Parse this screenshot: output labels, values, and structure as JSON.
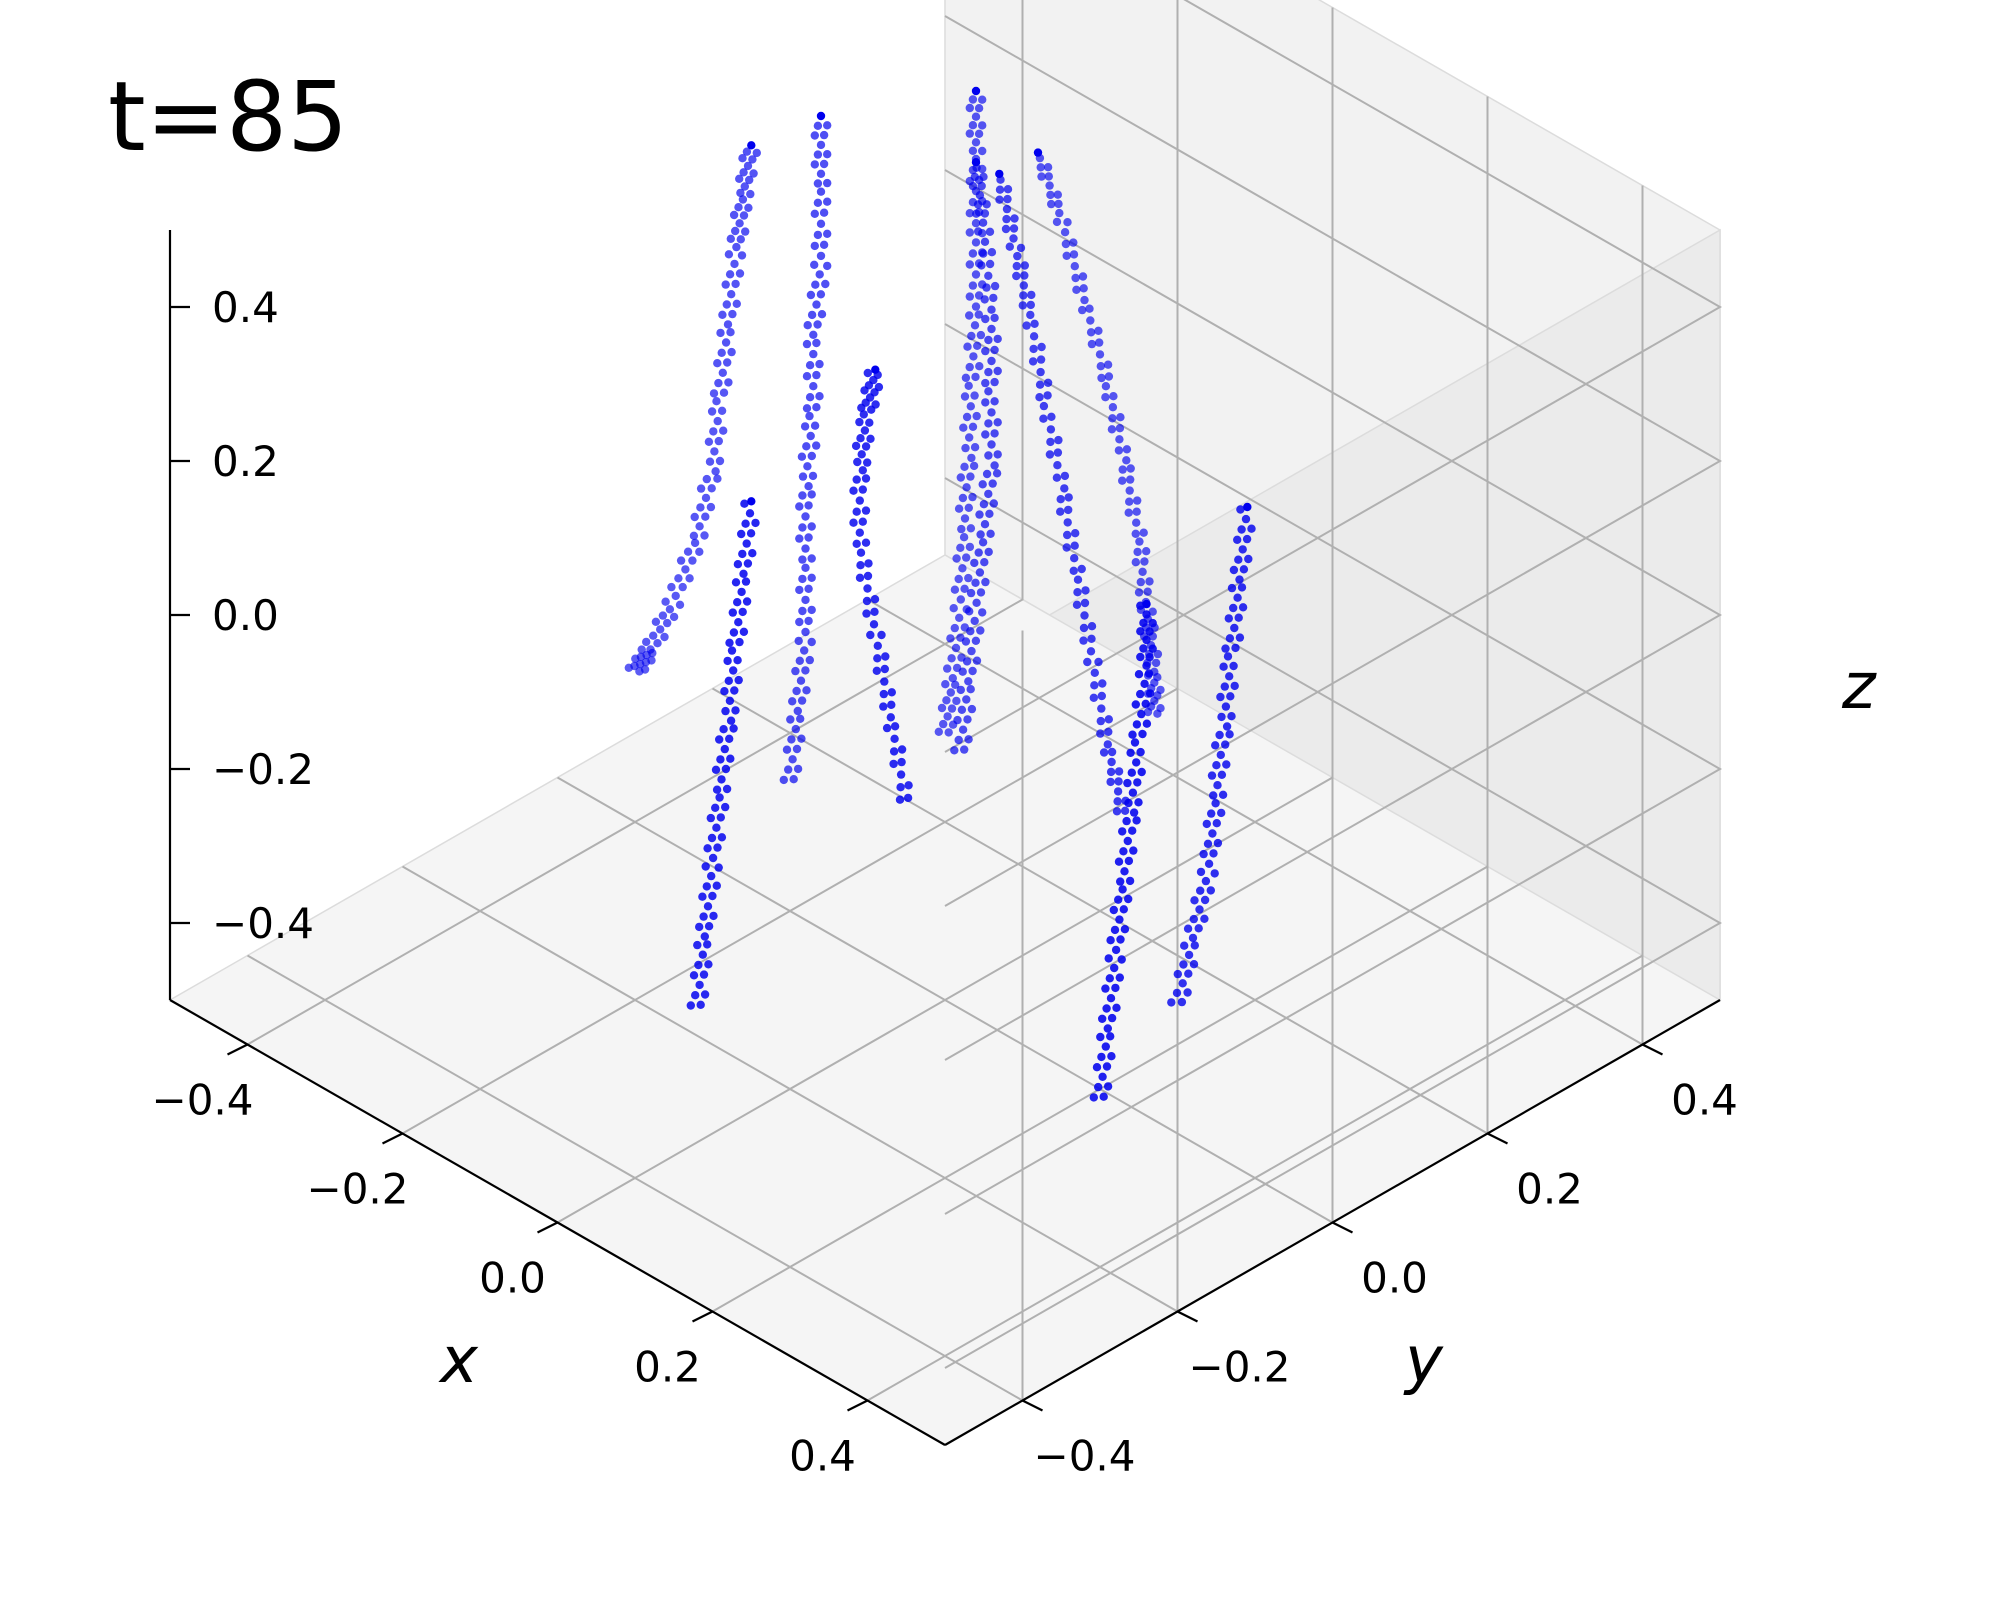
{
  "time_label": "t=85",
  "chart_data": {
    "type": "scatter",
    "projection": "3d",
    "title": "",
    "xlabel": "x",
    "ylabel": "y",
    "zlabel": "z",
    "xlim": [
      -0.5,
      0.5
    ],
    "ylim": [
      -0.5,
      0.5
    ],
    "zlim": [
      -0.5,
      0.5
    ],
    "xticks": [
      -0.4,
      -0.2,
      0.0,
      0.2,
      0.4
    ],
    "yticks": [
      -0.4,
      -0.2,
      0.0,
      0.2,
      0.4
    ],
    "zticks": [
      -0.4,
      -0.2,
      0.0,
      0.2,
      0.4
    ],
    "xtick_labels": [
      "−0.4",
      "−0.2",
      "0.0",
      "0.2",
      "0.4"
    ],
    "ytick_labels": [
      "−0.4",
      "−0.2",
      "0.0",
      "0.2",
      "0.4"
    ],
    "ztick_labels": [
      "−0.4",
      "−0.2",
      "0.0",
      "0.2",
      "0.4"
    ],
    "grid": true,
    "marker_color": "#0000ee",
    "pane_colors": {
      "left": "#f2f2f2",
      "right": "#ebebeb",
      "floor": "#f5f5f5"
    },
    "series": [
      {
        "points": [
          [
            -0.5,
            0.1,
            -0.42
          ],
          [
            -0.48,
            0.1,
            -0.38
          ],
          [
            -0.45,
            0.1,
            -0.3
          ],
          [
            -0.42,
            0.1,
            -0.2
          ],
          [
            -0.4,
            0.1,
            -0.1
          ],
          [
            -0.39,
            0.1,
            0.0
          ],
          [
            -0.38,
            0.1,
            0.1
          ],
          [
            -0.37,
            0.1,
            0.2
          ],
          [
            -0.36,
            0.1,
            0.28
          ],
          [
            -0.35,
            0.1,
            0.35
          ]
        ]
      },
      {
        "points": [
          [
            -0.28,
            0.28,
            -0.48
          ],
          [
            -0.27,
            0.28,
            -0.4
          ],
          [
            -0.26,
            0.28,
            -0.3
          ],
          [
            -0.255,
            0.28,
            -0.2
          ],
          [
            -0.25,
            0.28,
            -0.1
          ],
          [
            -0.245,
            0.28,
            0.0
          ],
          [
            -0.24,
            0.28,
            0.1
          ],
          [
            -0.24,
            0.28,
            0.2
          ],
          [
            -0.24,
            0.28,
            0.3
          ],
          [
            -0.24,
            0.28,
            0.38
          ]
        ]
      },
      {
        "points": [
          [
            -0.3,
            0.1,
            -0.45
          ],
          [
            -0.29,
            0.1,
            -0.35
          ],
          [
            -0.28,
            0.1,
            -0.25
          ],
          [
            -0.28,
            0.1,
            -0.15
          ],
          [
            -0.28,
            0.1,
            -0.05
          ],
          [
            -0.27,
            0.1,
            0.05
          ],
          [
            -0.27,
            0.1,
            0.15
          ],
          [
            -0.26,
            0.1,
            0.25
          ],
          [
            -0.26,
            0.1,
            0.35
          ],
          [
            -0.26,
            0.1,
            0.44
          ]
        ]
      },
      {
        "points": [
          [
            -0.15,
            0.42,
            -0.46
          ],
          [
            -0.13,
            0.4,
            -0.38
          ],
          [
            -0.12,
            0.38,
            -0.28
          ],
          [
            -0.12,
            0.37,
            -0.18
          ],
          [
            -0.13,
            0.36,
            -0.08
          ],
          [
            -0.14,
            0.35,
            0.02
          ],
          [
            -0.16,
            0.34,
            0.12
          ],
          [
            -0.18,
            0.33,
            0.22
          ],
          [
            -0.2,
            0.32,
            0.3
          ]
        ]
      },
      {
        "points": [
          [
            0.08,
            0.15,
            -0.3
          ],
          [
            0.06,
            0.15,
            -0.22
          ],
          [
            0.04,
            0.15,
            -0.12
          ],
          [
            0.02,
            0.15,
            -0.02
          ],
          [
            0.0,
            0.15,
            0.08
          ],
          [
            -0.02,
            0.15,
            0.18
          ],
          [
            -0.04,
            0.15,
            0.28
          ],
          [
            -0.06,
            0.15,
            0.36
          ],
          [
            -0.08,
            0.15,
            0.44
          ]
        ]
      },
      {
        "points": [
          [
            -0.18,
            0.2,
            -0.4
          ],
          [
            -0.17,
            0.2,
            -0.3
          ],
          [
            -0.16,
            0.2,
            -0.2
          ],
          [
            -0.15,
            0.2,
            -0.1
          ],
          [
            -0.14,
            0.2,
            0.0
          ],
          [
            -0.14,
            0.2,
            0.1
          ],
          [
            -0.14,
            0.2,
            0.2
          ],
          [
            -0.15,
            0.2,
            0.3
          ],
          [
            -0.16,
            0.2,
            0.38
          ]
        ]
      },
      {
        "points": [
          [
            0.1,
            -0.15,
            -0.1
          ],
          [
            0.08,
            -0.15,
            0.0
          ],
          [
            0.06,
            -0.15,
            0.1
          ],
          [
            0.04,
            -0.15,
            0.2
          ],
          [
            0.04,
            -0.15,
            0.3
          ],
          [
            0.05,
            -0.15,
            0.38
          ],
          [
            0.06,
            -0.15,
            0.44
          ]
        ]
      },
      {
        "points": [
          [
            -0.02,
            -0.3,
            -0.35
          ],
          [
            -0.01,
            -0.3,
            -0.25
          ],
          [
            0.0,
            -0.3,
            -0.15
          ],
          [
            0.01,
            -0.3,
            -0.05
          ],
          [
            0.02,
            -0.3,
            0.05
          ],
          [
            0.03,
            -0.3,
            0.15
          ],
          [
            0.04,
            -0.3,
            0.25
          ],
          [
            0.05,
            -0.3,
            0.35
          ]
        ]
      },
      {
        "points": [
          [
            0.2,
            0.1,
            -0.45
          ],
          [
            0.22,
            0.1,
            -0.35
          ],
          [
            0.24,
            0.1,
            -0.25
          ],
          [
            0.25,
            0.1,
            -0.15
          ],
          [
            0.26,
            0.1,
            -0.05
          ],
          [
            0.27,
            0.1,
            0.05
          ],
          [
            0.28,
            0.1,
            0.15
          ],
          [
            0.29,
            0.1,
            0.25
          ]
        ]
      },
      {
        "points": [
          [
            0.3,
            -0.1,
            -0.4
          ],
          [
            0.31,
            -0.1,
            -0.3
          ],
          [
            0.32,
            -0.1,
            -0.2
          ],
          [
            0.33,
            -0.1,
            -0.1
          ],
          [
            0.34,
            -0.1,
            0.0
          ],
          [
            0.35,
            -0.1,
            0.1
          ],
          [
            0.36,
            -0.1,
            0.2
          ],
          [
            0.36,
            -0.1,
            0.28
          ]
        ]
      }
    ]
  }
}
